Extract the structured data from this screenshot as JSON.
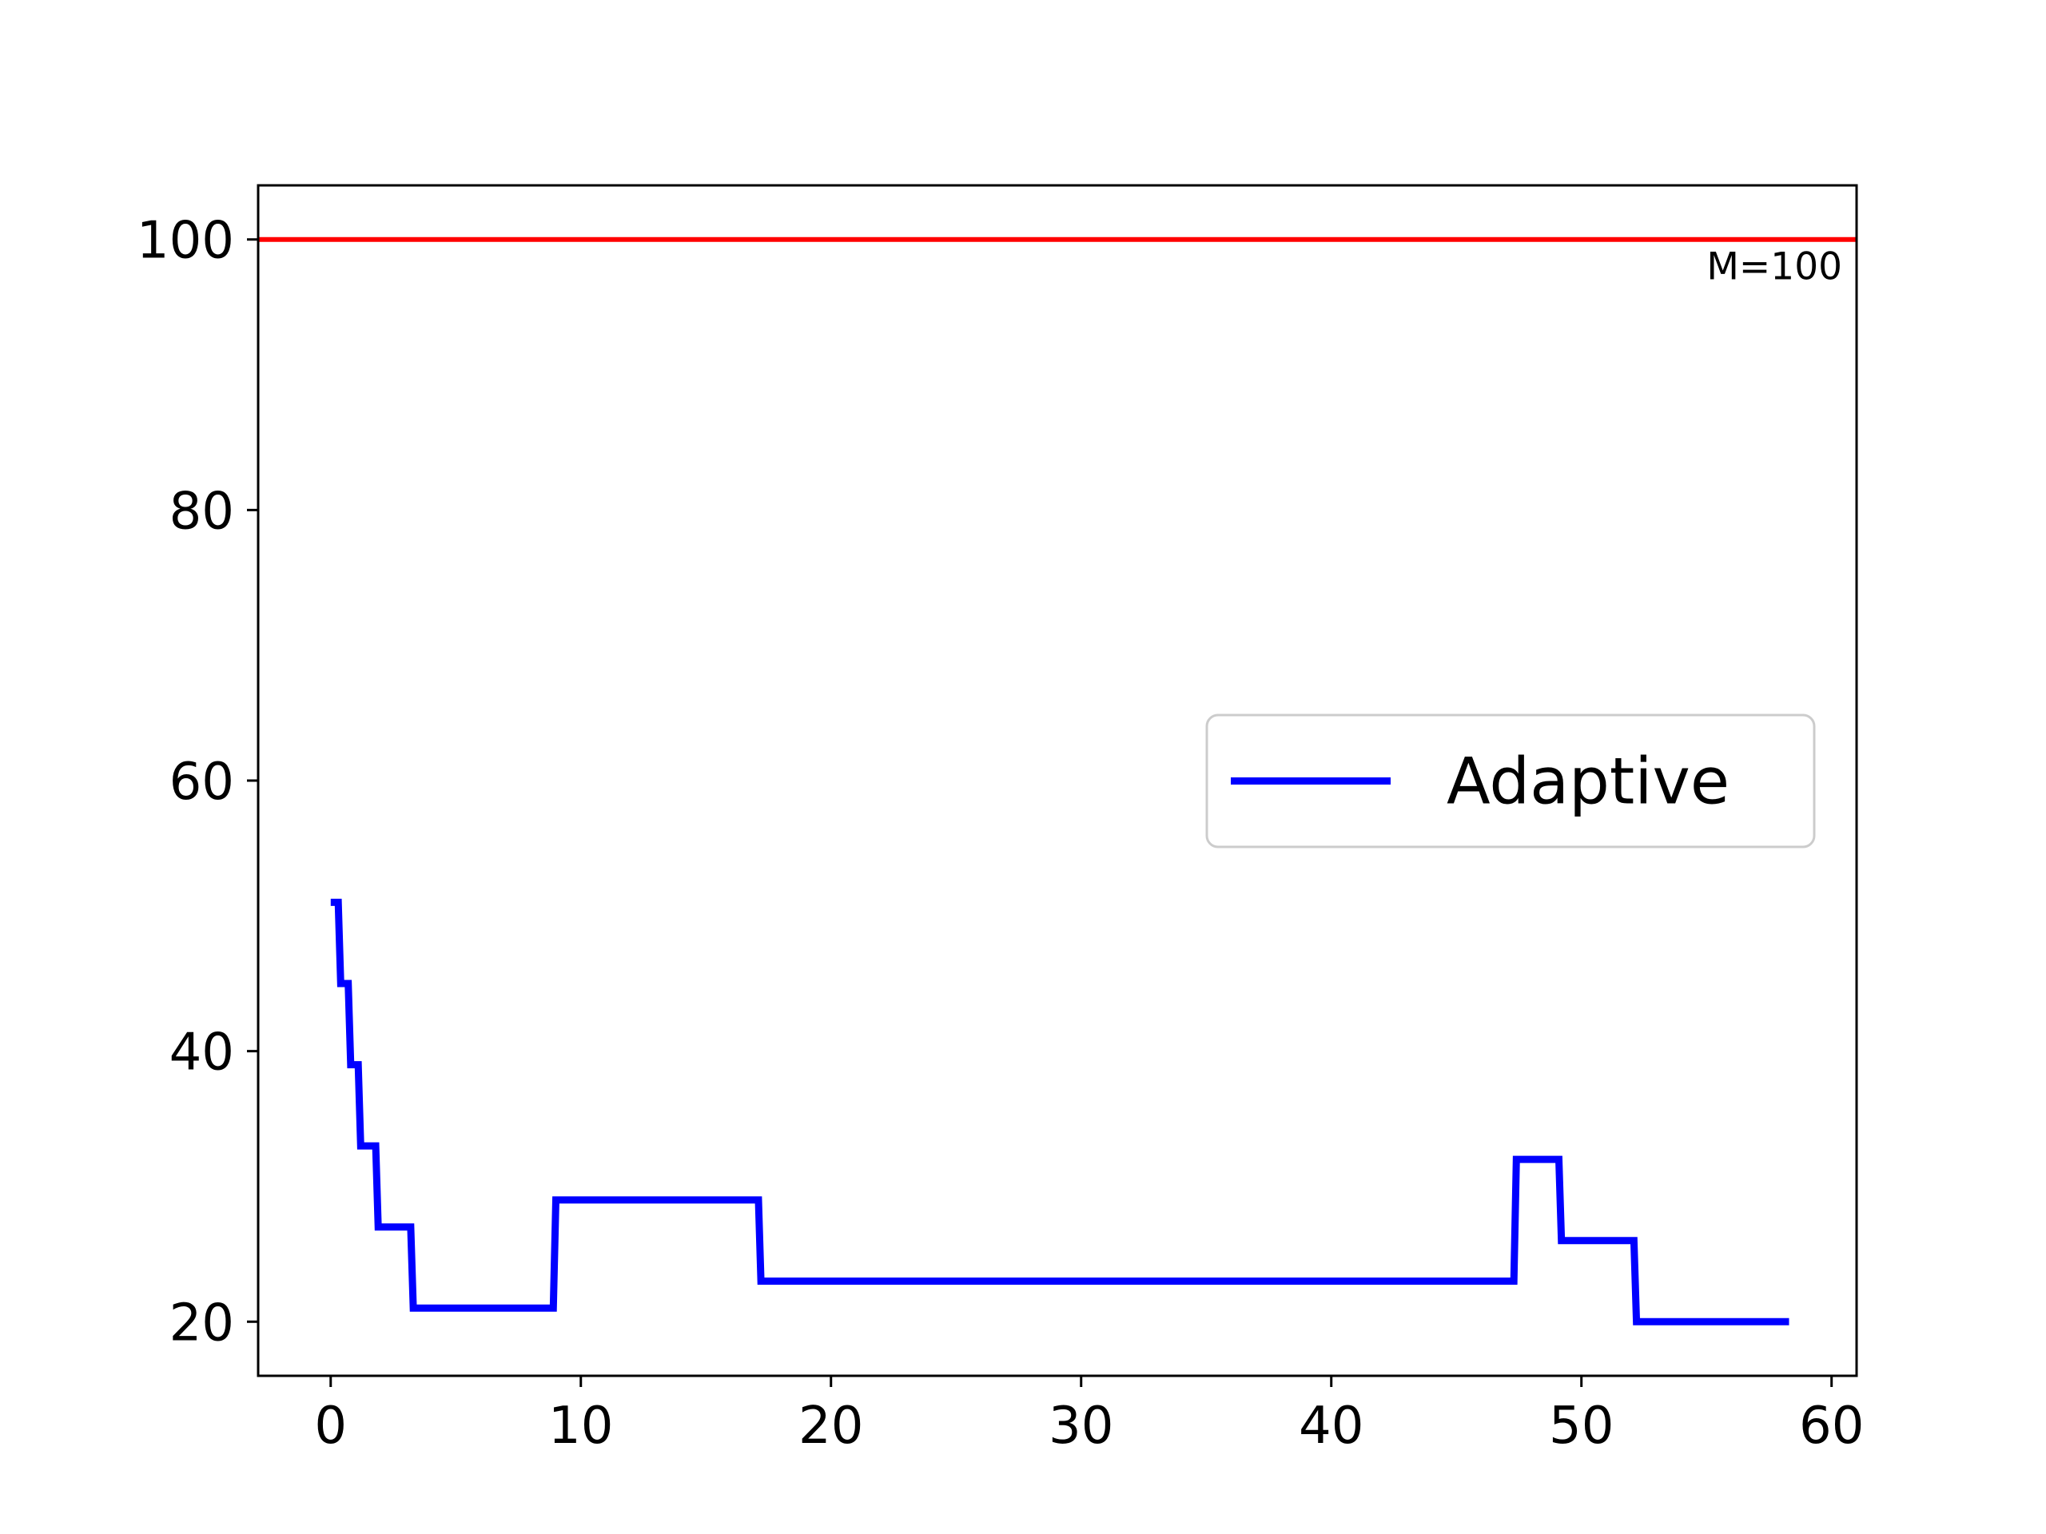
{
  "chart_data": {
    "type": "line",
    "title": "",
    "xlabel": "",
    "ylabel": "",
    "xlim": [
      -2.9,
      61
    ],
    "ylim": [
      16,
      104
    ],
    "xticks": [
      0,
      10,
      20,
      30,
      40,
      50,
      60
    ],
    "yticks": [
      20,
      40,
      60,
      80,
      100
    ],
    "grid": false,
    "legend": {
      "placement": "center-right",
      "entries": [
        "Adaptive"
      ]
    },
    "series": [
      {
        "name": "Adaptive",
        "color": "#0000ff",
        "points": [
          [
            0,
            51
          ],
          [
            0.3,
            51
          ],
          [
            0.4,
            45
          ],
          [
            0.7,
            45
          ],
          [
            0.8,
            39
          ],
          [
            1.1,
            39
          ],
          [
            1.2,
            33
          ],
          [
            1.8,
            33
          ],
          [
            1.9,
            27
          ],
          [
            3.2,
            27
          ],
          [
            3.3,
            21
          ],
          [
            8.9,
            21
          ],
          [
            9.0,
            29
          ],
          [
            17.1,
            29
          ],
          [
            17.2,
            23
          ],
          [
            47.3,
            23
          ],
          [
            47.4,
            32
          ],
          [
            49.1,
            32
          ],
          [
            49.2,
            26
          ],
          [
            52.1,
            26
          ],
          [
            52.2,
            20
          ],
          [
            58.3,
            20
          ]
        ]
      }
    ],
    "reference_lines": [
      {
        "y": 100,
        "color": "#ff0000",
        "label": "M=100",
        "label_placement": "right-below"
      }
    ]
  }
}
